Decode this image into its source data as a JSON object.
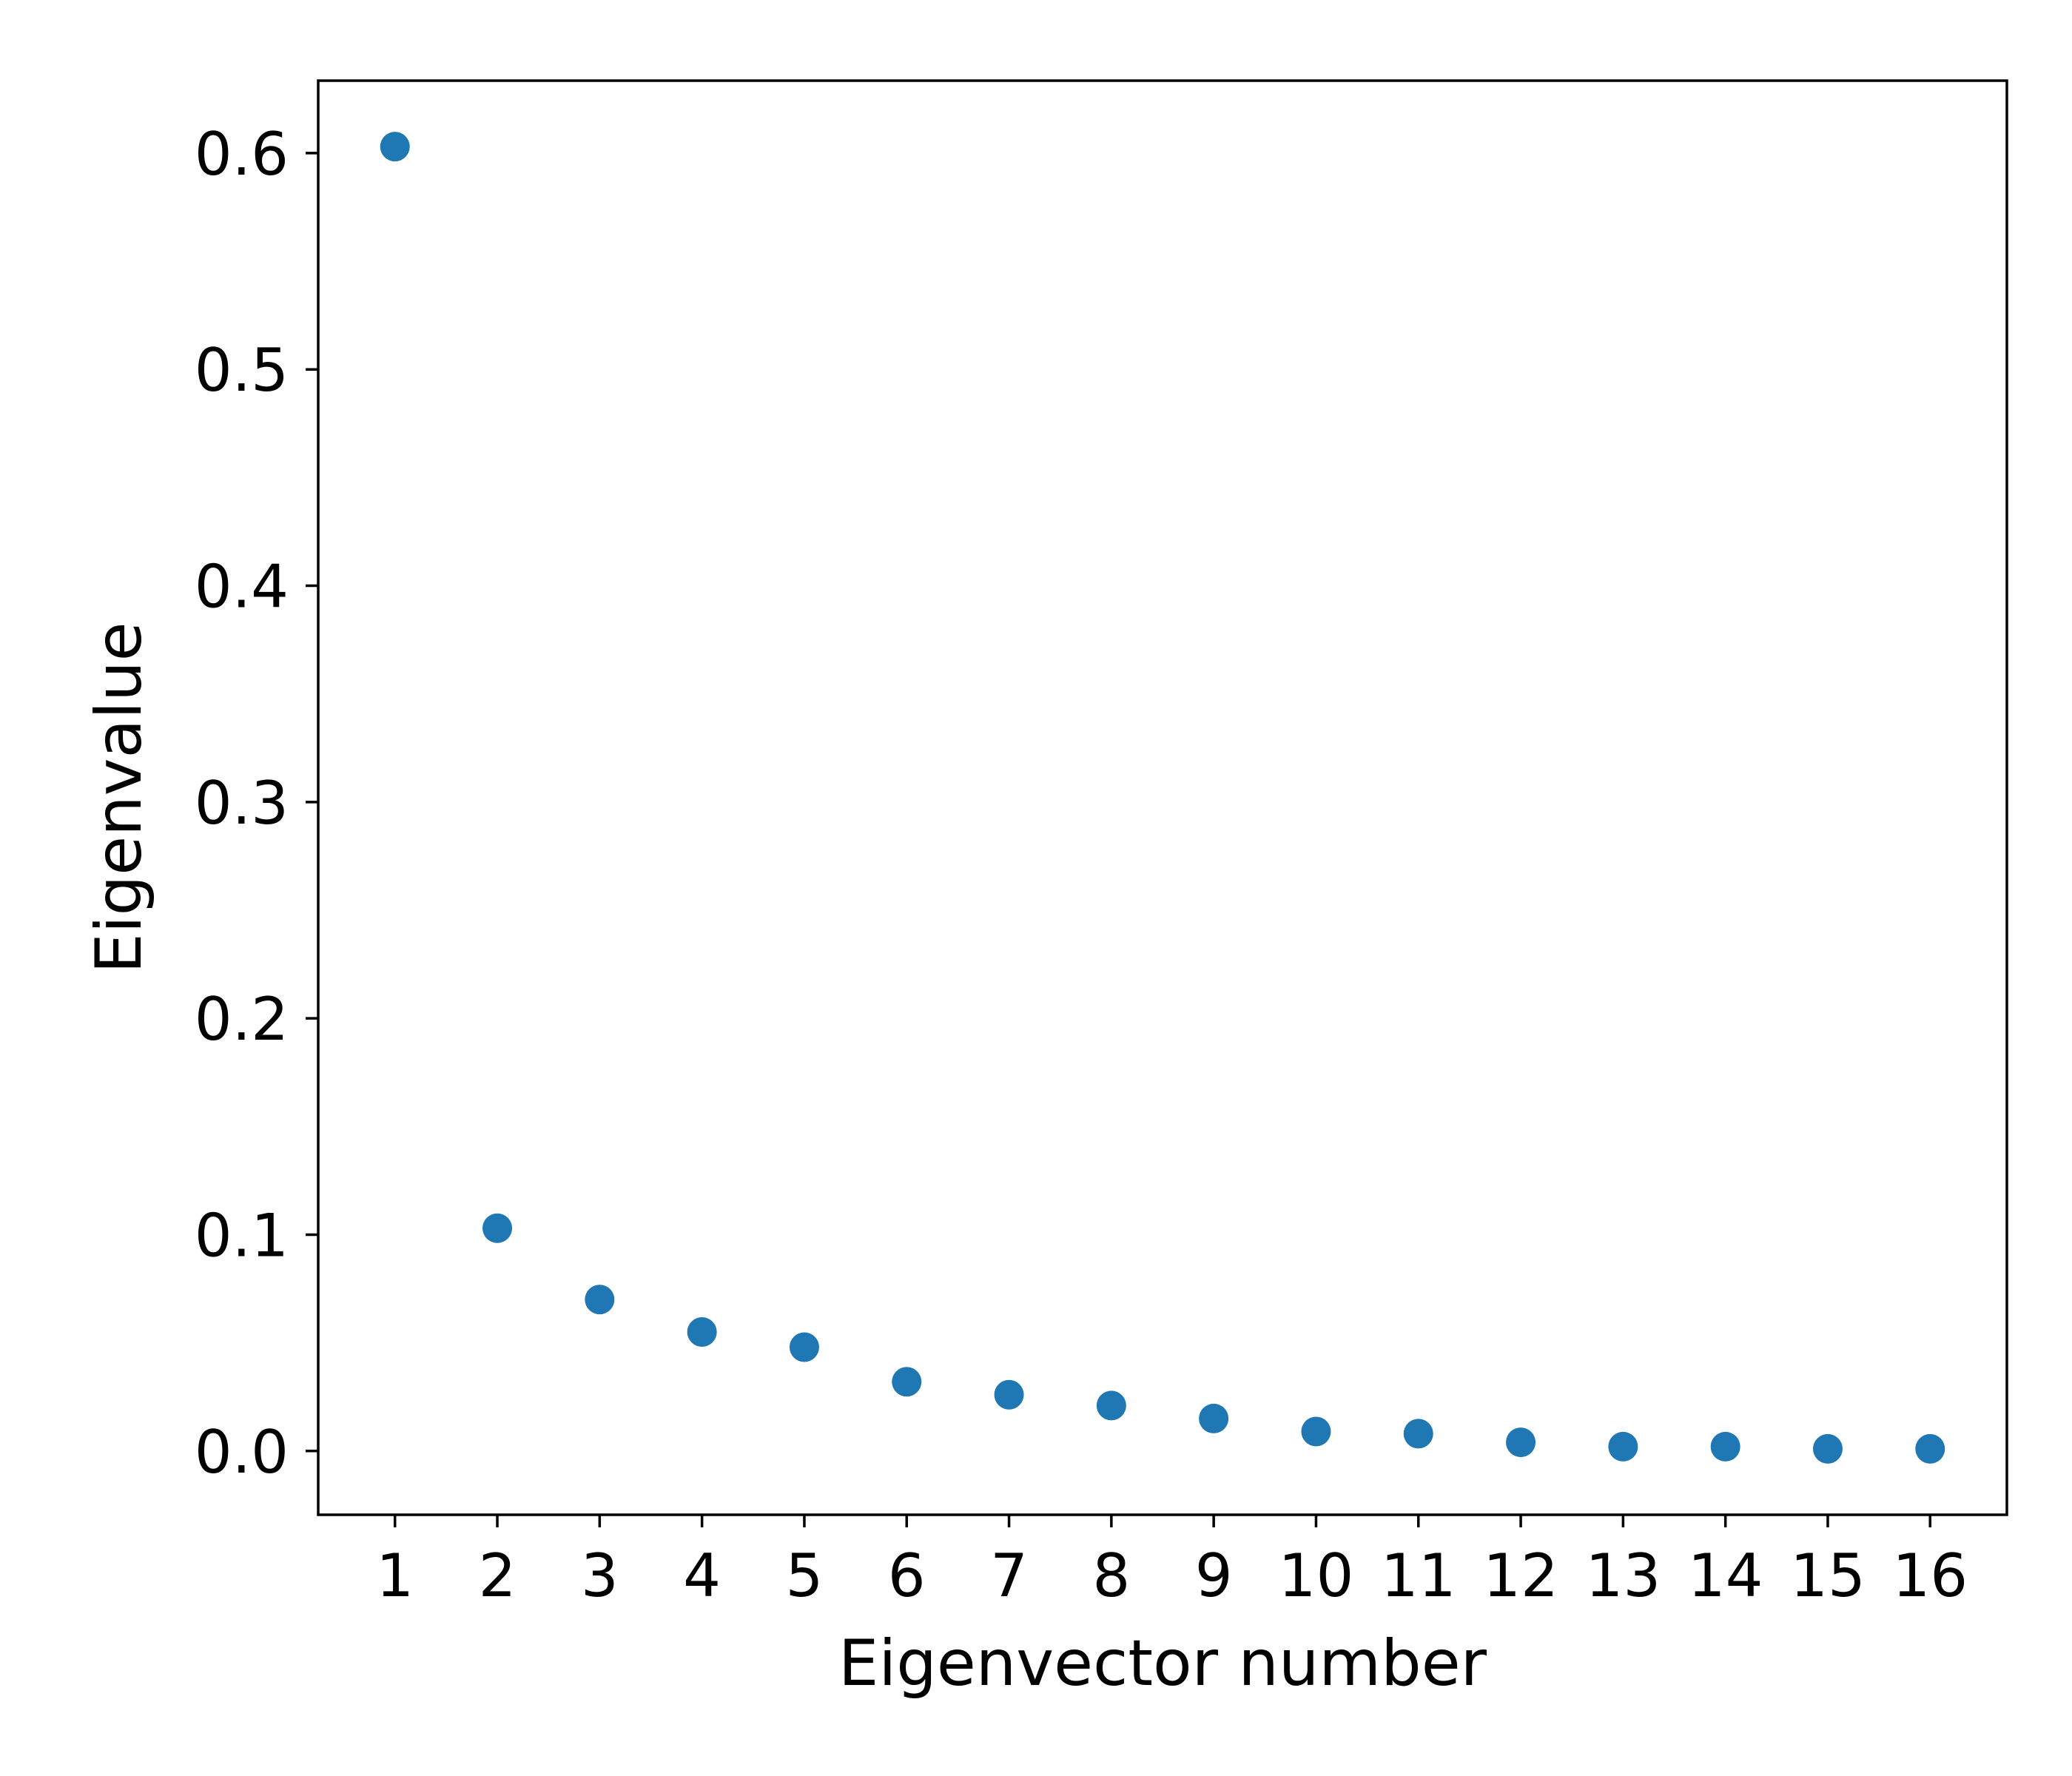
{
  "chart_data": {
    "type": "scatter",
    "title": "",
    "xlabel": "Eigenvector number",
    "ylabel": "Eigenvalue",
    "x": [
      1,
      2,
      3,
      4,
      5,
      6,
      7,
      8,
      9,
      10,
      11,
      12,
      13,
      14,
      15,
      16
    ],
    "y": [
      0.603,
      0.103,
      0.07,
      0.055,
      0.048,
      0.032,
      0.026,
      0.021,
      0.015,
      0.009,
      0.008,
      0.004,
      0.002,
      0.002,
      0.001,
      0.001
    ],
    "xticks": [
      "1",
      "2",
      "3",
      "4",
      "5",
      "6",
      "7",
      "8",
      "9",
      "10",
      "11",
      "12",
      "13",
      "14",
      "15",
      "16"
    ],
    "yticks": [
      0.0,
      0.1,
      0.2,
      0.3,
      0.4,
      0.5,
      0.6
    ],
    "ytick_labels": [
      "0.0",
      "0.1",
      "0.2",
      "0.3",
      "0.4",
      "0.5",
      "0.6"
    ],
    "xlim": [
      0.25,
      16.75
    ],
    "ylim": [
      -0.0295,
      0.6335
    ],
    "grid": false,
    "legend": "none",
    "marker_color": "#1f77b4"
  }
}
